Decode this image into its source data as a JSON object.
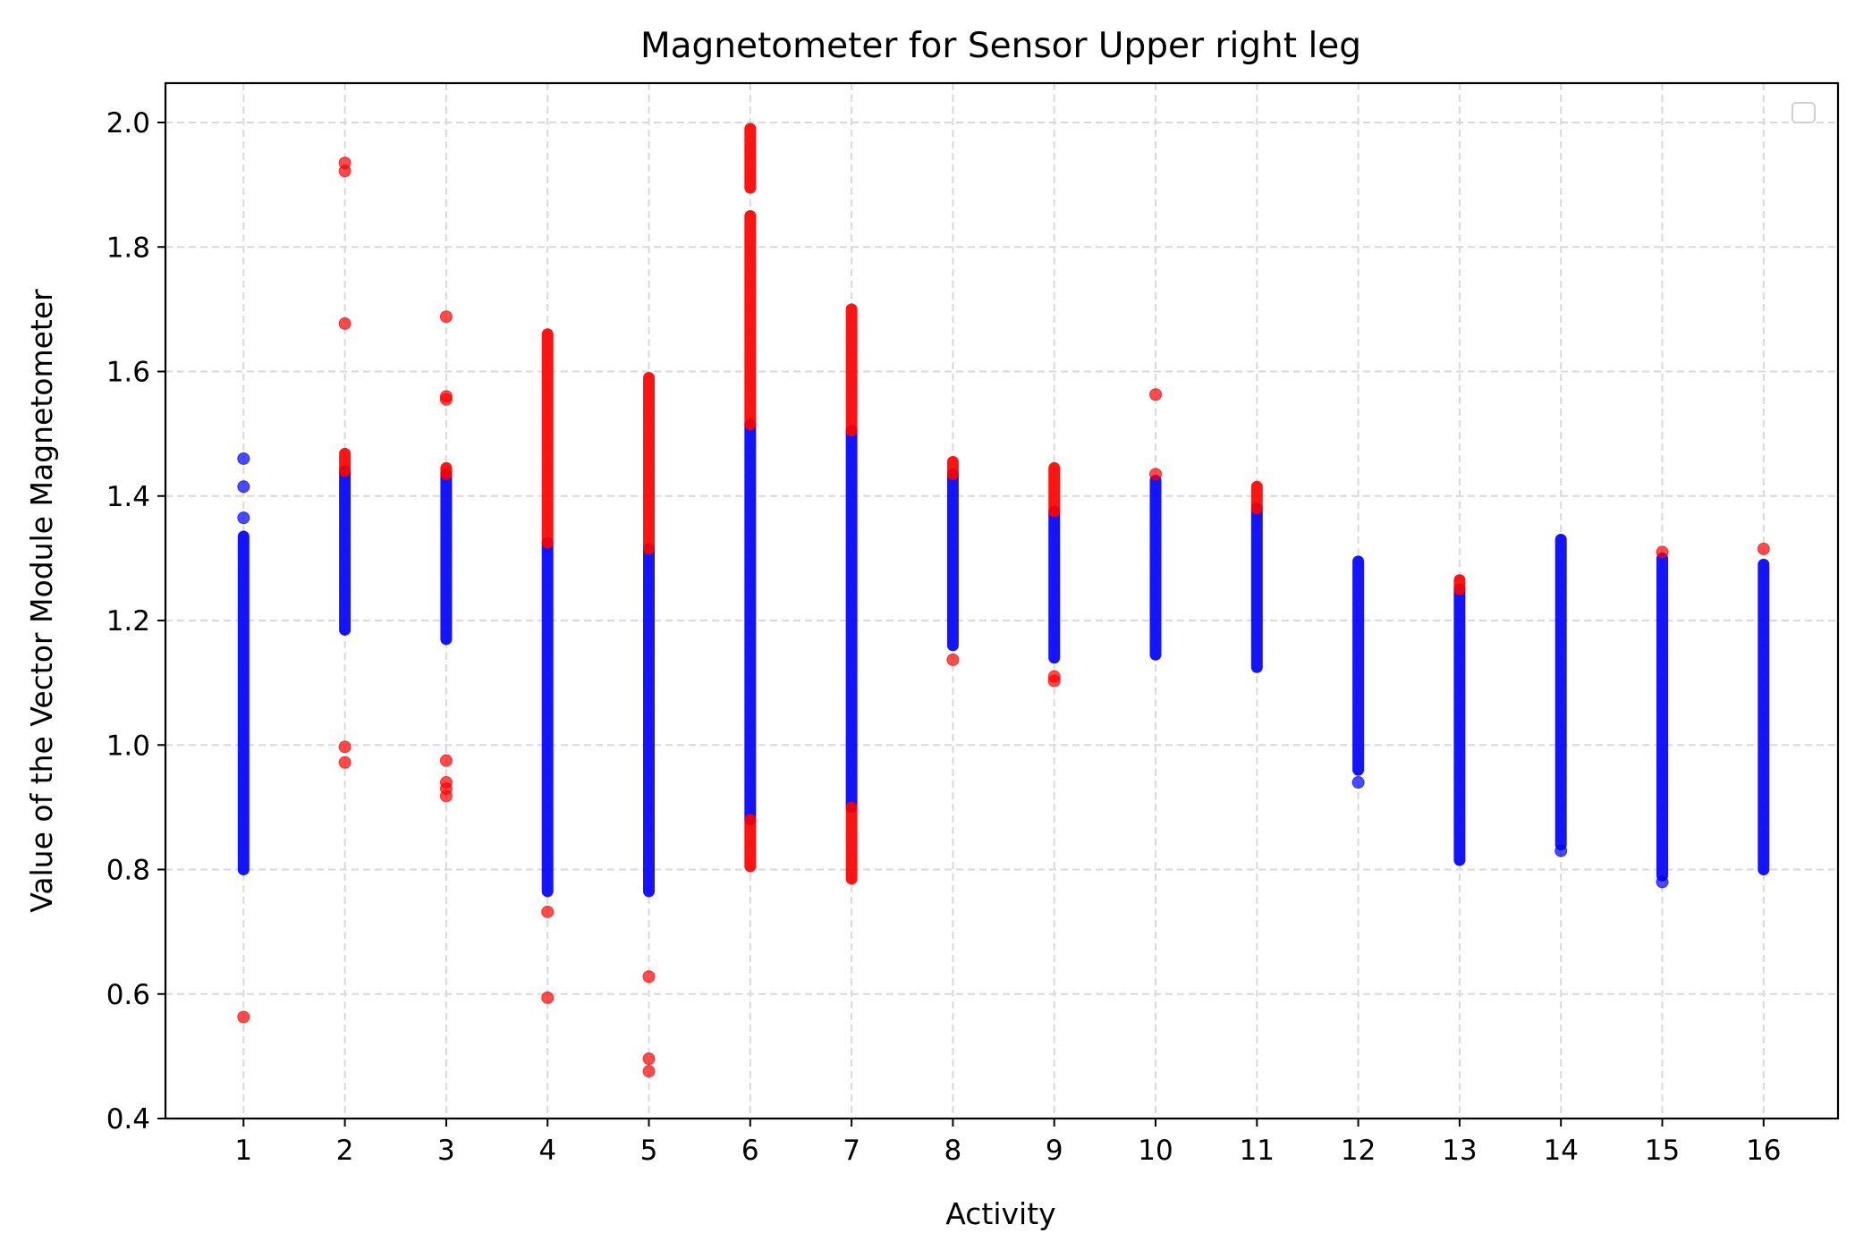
{
  "chart_data": {
    "type": "scatter",
    "title": "Magnetometer for Sensor Upper right leg",
    "xlabel": "Activity",
    "ylabel": "Value of the Vector Module Magnetometer",
    "xlim": [
      0.25,
      16.75
    ],
    "ylim": [
      0.4,
      2.067
    ],
    "x_ticks": [
      1,
      2,
      3,
      4,
      5,
      6,
      7,
      8,
      9,
      10,
      11,
      12,
      13,
      14,
      15,
      16
    ],
    "y_ticks": [
      0.4,
      0.6,
      0.8,
      1.0,
      1.2,
      1.4,
      1.6,
      1.8,
      2.0
    ],
    "y_tick_labels": [
      "0.4",
      "0.6",
      "0.8",
      "1.0",
      "1.2",
      "1.4",
      "1.6",
      "1.8",
      "2.0"
    ],
    "grid": true,
    "legend": {
      "placement": "top-right",
      "entries": []
    },
    "colors": {
      "normal": "#0000ff",
      "outlier": "#ff0000",
      "grid": "#d9d9d9"
    },
    "series": [
      {
        "color": "#0000ff",
        "ranges": [
          {
            "x": 1,
            "ymin": 0.8,
            "ymax": 1.335
          },
          {
            "x": 2,
            "ymin": 1.185,
            "ymax": 1.44
          },
          {
            "x": 3,
            "ymin": 1.17,
            "ymax": 1.435
          },
          {
            "x": 4,
            "ymin": 0.765,
            "ymax": 1.325
          },
          {
            "x": 5,
            "ymin": 0.765,
            "ymax": 1.315
          },
          {
            "x": 6,
            "ymin": 0.88,
            "ymax": 1.515
          },
          {
            "x": 7,
            "ymin": 0.9,
            "ymax": 1.505
          },
          {
            "x": 8,
            "ymin": 1.16,
            "ymax": 1.435
          },
          {
            "x": 9,
            "ymin": 1.14,
            "ymax": 1.375
          },
          {
            "x": 10,
            "ymin": 1.145,
            "ymax": 1.425
          },
          {
            "x": 11,
            "ymin": 1.125,
            "ymax": 1.38
          },
          {
            "x": 12,
            "ymin": 0.96,
            "ymax": 1.295
          },
          {
            "x": 13,
            "ymin": 0.815,
            "ymax": 1.25
          },
          {
            "x": 14,
            "ymin": 0.84,
            "ymax": 1.33
          },
          {
            "x": 15,
            "ymin": 0.79,
            "ymax": 1.3
          },
          {
            "x": 16,
            "ymin": 0.8,
            "ymax": 1.29
          }
        ],
        "points": [
          {
            "x": 1,
            "y": 1.46
          },
          {
            "x": 1,
            "y": 1.415
          },
          {
            "x": 1,
            "y": 1.365
          },
          {
            "x": 12,
            "y": 0.94
          },
          {
            "x": 14,
            "y": 0.83
          },
          {
            "x": 15,
            "y": 0.78
          }
        ]
      },
      {
        "color": "#ff0000",
        "ranges": [
          {
            "x": 2,
            "ymin": 1.44,
            "ymax": 1.468
          },
          {
            "x": 3,
            "ymin": 1.435,
            "ymax": 1.445
          },
          {
            "x": 4,
            "ymin": 1.325,
            "ymax": 1.66
          },
          {
            "x": 5,
            "ymin": 1.315,
            "ymax": 1.59
          },
          {
            "x": 6,
            "ymin": 1.515,
            "ymax": 1.85
          },
          {
            "x": 6,
            "ymin": 1.895,
            "ymax": 1.99
          },
          {
            "x": 6,
            "ymin": 0.805,
            "ymax": 0.88
          },
          {
            "x": 7,
            "ymin": 1.505,
            "ymax": 1.7
          },
          {
            "x": 7,
            "ymin": 0.785,
            "ymax": 0.9
          },
          {
            "x": 8,
            "ymin": 1.435,
            "ymax": 1.455
          },
          {
            "x": 9,
            "ymin": 1.375,
            "ymax": 1.445
          },
          {
            "x": 11,
            "ymin": 1.38,
            "ymax": 1.415
          },
          {
            "x": 13,
            "ymin": 1.25,
            "ymax": 1.265
          }
        ],
        "points": [
          {
            "x": 1,
            "y": 0.563
          },
          {
            "x": 2,
            "y": 1.935
          },
          {
            "x": 2,
            "y": 1.922
          },
          {
            "x": 2,
            "y": 1.677
          },
          {
            "x": 2,
            "y": 0.997
          },
          {
            "x": 2,
            "y": 0.972
          },
          {
            "x": 3,
            "y": 1.688
          },
          {
            "x": 3,
            "y": 1.56
          },
          {
            "x": 3,
            "y": 1.555
          },
          {
            "x": 3,
            "y": 0.975
          },
          {
            "x": 3,
            "y": 0.94
          },
          {
            "x": 3,
            "y": 0.93
          },
          {
            "x": 3,
            "y": 0.918
          },
          {
            "x": 4,
            "y": 0.732
          },
          {
            "x": 4,
            "y": 0.594
          },
          {
            "x": 5,
            "y": 0.628
          },
          {
            "x": 5,
            "y": 0.496
          },
          {
            "x": 5,
            "y": 0.476
          },
          {
            "x": 8,
            "y": 1.137
          },
          {
            "x": 9,
            "y": 1.11
          },
          {
            "x": 9,
            "y": 1.103
          },
          {
            "x": 10,
            "y": 1.563
          },
          {
            "x": 10,
            "y": 1.435
          },
          {
            "x": 15,
            "y": 1.31
          },
          {
            "x": 16,
            "y": 1.315
          }
        ]
      }
    ]
  }
}
